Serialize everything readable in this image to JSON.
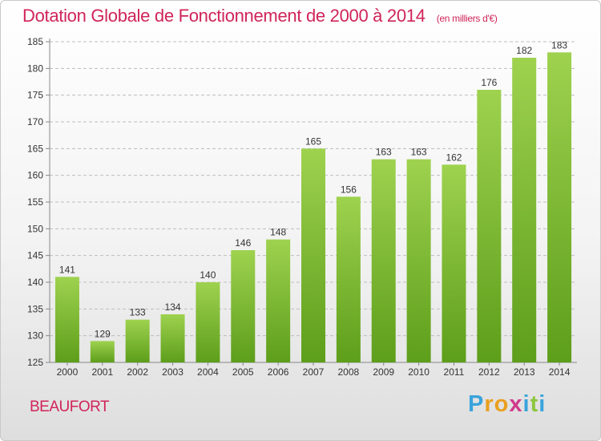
{
  "header": {
    "title": "Dotation Globale de Fonctionnement de 2000 à 2014",
    "subtitle": "(en milliers d'€)"
  },
  "footer": {
    "commune": "BEAUFORT",
    "logo_letters": [
      "P",
      "r",
      "o",
      "x",
      "i",
      "t",
      "i"
    ],
    "logo_colors": [
      "#3aa3dc",
      "#e9a020",
      "#e9a020",
      "#d03a8c",
      "#3aa3dc",
      "#8cc63f",
      "#3aa3dc"
    ]
  },
  "chart_data": {
    "type": "bar",
    "title": "Dotation Globale de Fonctionnement de 2000 à 2014",
    "subtitle": "(en milliers d'€)",
    "xlabel": "",
    "ylabel": "",
    "categories": [
      "2000",
      "2001",
      "2002",
      "2003",
      "2004",
      "2005",
      "2006",
      "2007",
      "2008",
      "2009",
      "2010",
      "2011",
      "2012",
      "2013",
      "2014"
    ],
    "values": [
      141,
      129,
      133,
      134,
      140,
      146,
      148,
      165,
      156,
      163,
      163,
      162,
      176,
      182,
      183
    ],
    "ylim": [
      125,
      185
    ],
    "yticks": [
      125,
      130,
      135,
      140,
      145,
      150,
      155,
      160,
      165,
      170,
      175,
      180,
      185
    ],
    "grid": true,
    "bar_color_top": "#9ed24f",
    "bar_color_bottom": "#5d9e1a"
  }
}
